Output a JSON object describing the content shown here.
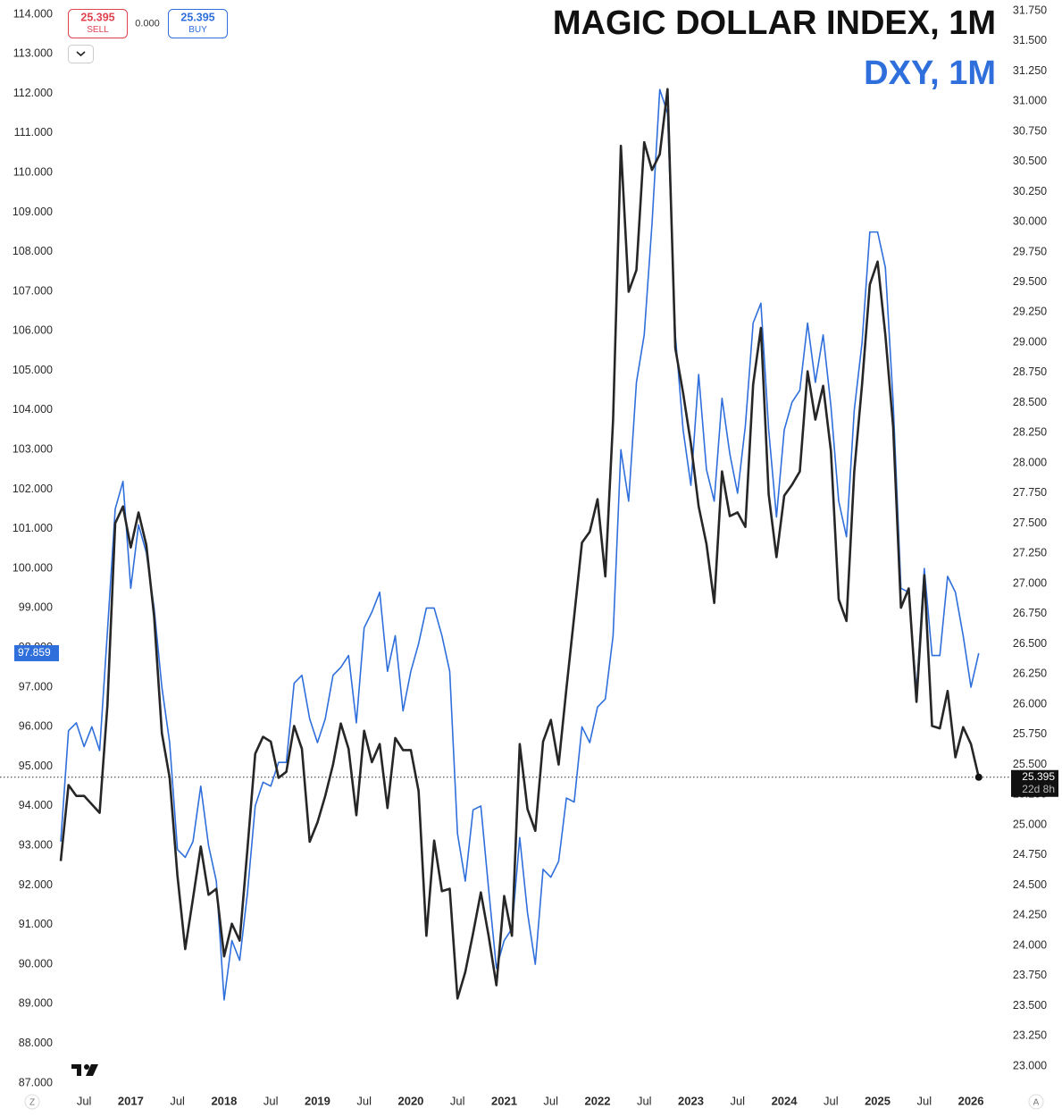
{
  "chart_data": {
    "type": "line",
    "categories": [
      null,
      null,
      null,
      "Jul",
      null,
      null,
      null,
      null,
      null,
      "2017",
      null,
      null,
      null,
      null,
      null,
      "Jul",
      null,
      null,
      null,
      null,
      null,
      "2018",
      null,
      null,
      null,
      null,
      null,
      "Jul",
      null,
      null,
      null,
      null,
      null,
      "2019",
      null,
      null,
      null,
      null,
      null,
      "Jul",
      null,
      null,
      null,
      null,
      null,
      "2020",
      null,
      null,
      null,
      null,
      null,
      "Jul",
      null,
      null,
      null,
      null,
      null,
      "2021",
      null,
      null,
      null,
      null,
      null,
      "Jul",
      null,
      null,
      null,
      null,
      null,
      "2022",
      null,
      null,
      null,
      null,
      null,
      "Jul",
      null,
      null,
      null,
      null,
      null,
      "2023",
      null,
      null,
      null,
      null,
      null,
      "Jul",
      null,
      null,
      null,
      null,
      null,
      "2024",
      null,
      null,
      null,
      null,
      null,
      "Jul",
      null,
      null,
      null,
      null,
      null,
      "2025",
      null,
      null,
      null,
      null,
      null,
      "Jul",
      null,
      null,
      null,
      null,
      null,
      "2026",
      null
    ],
    "series": [
      {
        "name": "DXY, 1M",
        "color": "#2f6fdc",
        "axis": "y",
        "values": [
          93.1,
          95.9,
          96.1,
          95.5,
          96.0,
          95.4,
          98.4,
          101.5,
          102.2,
          99.5,
          101.1,
          100.4,
          99.0,
          97.0,
          95.6,
          92.9,
          92.7,
          93.1,
          94.5,
          93.0,
          92.1,
          89.1,
          90.6,
          90.1,
          91.8,
          94.0,
          94.6,
          94.5,
          95.1,
          95.1,
          97.1,
          97.3,
          96.2,
          95.6,
          96.2,
          97.3,
          97.5,
          97.8,
          96.1,
          98.5,
          98.9,
          99.4,
          97.4,
          98.3,
          96.4,
          97.4,
          98.1,
          99.0,
          99.0,
          98.3,
          97.4,
          93.3,
          92.1,
          93.9,
          94.0,
          91.9,
          89.9,
          90.6,
          90.9,
          93.2,
          91.3,
          90.0,
          92.4,
          92.2,
          92.6,
          94.2,
          94.1,
          96.0,
          95.6,
          96.5,
          96.7,
          98.3,
          103.0,
          101.7,
          104.7,
          105.9,
          108.7,
          112.1,
          111.5,
          105.9,
          103.5,
          102.1,
          104.9,
          102.5,
          101.7,
          104.3,
          102.9,
          101.9,
          103.6,
          106.2,
          106.7,
          103.5,
          101.3,
          103.5,
          104.2,
          104.5,
          106.2,
          104.7,
          105.9,
          104.1,
          101.7,
          100.8,
          104.0,
          105.7,
          108.5,
          108.5,
          107.6,
          104.2,
          99.5,
          99.4,
          96.9,
          100.0,
          97.8,
          97.8,
          99.8,
          99.4,
          98.3,
          97.0,
          97.859
        ]
      },
      {
        "name": "MAGIC DOLLAR INDEX, 1M",
        "color": "#262626",
        "axis": "y2",
        "values": [
          24.7,
          25.33,
          25.24,
          25.24,
          25.17,
          25.1,
          25.99,
          27.5,
          27.64,
          27.3,
          27.59,
          27.32,
          26.73,
          25.76,
          25.39,
          24.58,
          23.97,
          24.39,
          24.82,
          24.42,
          24.47,
          23.91,
          24.18,
          24.04,
          24.8,
          25.59,
          25.73,
          25.69,
          25.39,
          25.44,
          25.82,
          25.63,
          24.86,
          25.02,
          25.24,
          25.5,
          25.84,
          25.63,
          25.08,
          25.78,
          25.52,
          25.67,
          25.14,
          25.72,
          25.62,
          25.62,
          25.28,
          24.08,
          24.87,
          24.45,
          24.47,
          23.56,
          23.78,
          24.1,
          24.44,
          24.08,
          23.67,
          24.41,
          24.08,
          25.67,
          25.13,
          24.95,
          25.69,
          25.87,
          25.5,
          26.13,
          26.73,
          27.34,
          27.43,
          27.7,
          27.06,
          28.36,
          30.63,
          29.42,
          29.6,
          30.66,
          30.43,
          30.56,
          31.1,
          28.95,
          28.58,
          28.16,
          27.64,
          27.33,
          26.84,
          27.93,
          27.56,
          27.59,
          27.47,
          28.65,
          29.12,
          27.74,
          27.22,
          27.73,
          27.82,
          27.93,
          28.76,
          28.36,
          28.64,
          28.1,
          26.87,
          26.69,
          27.93,
          28.65,
          29.48,
          29.67,
          29.06,
          28.3,
          26.8,
          26.96,
          26.02,
          27.07,
          25.82,
          25.8,
          26.11,
          25.56,
          25.81,
          25.67,
          25.395
        ]
      }
    ],
    "ylim": [
      86.706,
      114.361
    ],
    "yticks": [
      {
        "value": 87,
        "label": "87.000"
      },
      {
        "value": 88,
        "label": "88.000"
      },
      {
        "value": 89,
        "label": "89.000"
      },
      {
        "value": 90,
        "label": "90.000"
      },
      {
        "value": 91,
        "label": "91.000"
      },
      {
        "value": 92,
        "label": "92.000"
      },
      {
        "value": 93,
        "label": "93.000"
      },
      {
        "value": 94,
        "label": "94.000"
      },
      {
        "value": 95,
        "label": "95.000"
      },
      {
        "value": 96,
        "label": "96.000"
      },
      {
        "value": 97,
        "label": "97.000"
      },
      {
        "value": 98,
        "label": "98.000"
      },
      {
        "value": 99,
        "label": "99.000"
      },
      {
        "value": 100,
        "label": "100.000"
      },
      {
        "value": 101,
        "label": "101.000"
      },
      {
        "value": 102,
        "label": "102.000"
      },
      {
        "value": 103,
        "label": "103.000"
      },
      {
        "value": 104,
        "label": "104.000"
      },
      {
        "value": 105,
        "label": "105.000"
      },
      {
        "value": 106,
        "label": "106.000"
      },
      {
        "value": 107,
        "label": "107.000"
      },
      {
        "value": 108,
        "label": "108.000"
      },
      {
        "value": 109,
        "label": "109.000"
      },
      {
        "value": 110,
        "label": "110.000"
      },
      {
        "value": 111,
        "label": "111.000"
      },
      {
        "value": 112,
        "label": "112.000"
      },
      {
        "value": 113,
        "label": "113.000"
      },
      {
        "value": 114,
        "label": "114.000"
      }
    ],
    "y2lim": [
      22.763,
      31.839
    ],
    "y2ticks": [
      {
        "value": 23,
        "label": "23.000"
      },
      {
        "value": 23.25,
        "label": "23.250"
      },
      {
        "value": 23.5,
        "label": "23.500"
      },
      {
        "value": 23.75,
        "label": "23.750"
      },
      {
        "value": 24,
        "label": "24.000"
      },
      {
        "value": 24.25,
        "label": "24.250"
      },
      {
        "value": 24.5,
        "label": "24.500"
      },
      {
        "value": 24.75,
        "label": "24.750"
      },
      {
        "value": 25,
        "label": "25.000"
      },
      {
        "value": 25.25,
        "label": "25.250"
      },
      {
        "value": 25.5,
        "label": "25.500"
      },
      {
        "value": 25.75,
        "label": "25.750"
      },
      {
        "value": 26,
        "label": "26.000"
      },
      {
        "value": 26.25,
        "label": "26.250"
      },
      {
        "value": 26.5,
        "label": "26.500"
      },
      {
        "value": 26.75,
        "label": "26.750"
      },
      {
        "value": 27,
        "label": "27.000"
      },
      {
        "value": 27.25,
        "label": "27.250"
      },
      {
        "value": 27.5,
        "label": "27.500"
      },
      {
        "value": 27.75,
        "label": "27.750"
      },
      {
        "value": 28,
        "label": "28.000"
      },
      {
        "value": 28.25,
        "label": "28.250"
      },
      {
        "value": 28.5,
        "label": "28.500"
      },
      {
        "value": 28.75,
        "label": "28.750"
      },
      {
        "value": 29,
        "label": "29.000"
      },
      {
        "value": 29.25,
        "label": "29.250"
      },
      {
        "value": 29.5,
        "label": "29.500"
      },
      {
        "value": 29.75,
        "label": "29.750"
      },
      {
        "value": 30,
        "label": "30.000"
      },
      {
        "value": 30.25,
        "label": "30.250"
      },
      {
        "value": 30.5,
        "label": "30.500"
      },
      {
        "value": 30.75,
        "label": "30.750"
      },
      {
        "value": 31,
        "label": "31.000"
      },
      {
        "value": 31.25,
        "label": "31.250"
      },
      {
        "value": 31.5,
        "label": "31.500"
      },
      {
        "value": 31.75,
        "label": "31.750"
      }
    ],
    "grid": false,
    "countdown": "22d 8h"
  },
  "trade_widget": {
    "sell_price": "25.395",
    "sell_label": "SELL",
    "spread": "0.000",
    "buy_price": "25.395",
    "buy_label": "BUY"
  },
  "corner_buttons": [
    "Z",
    "A"
  ]
}
